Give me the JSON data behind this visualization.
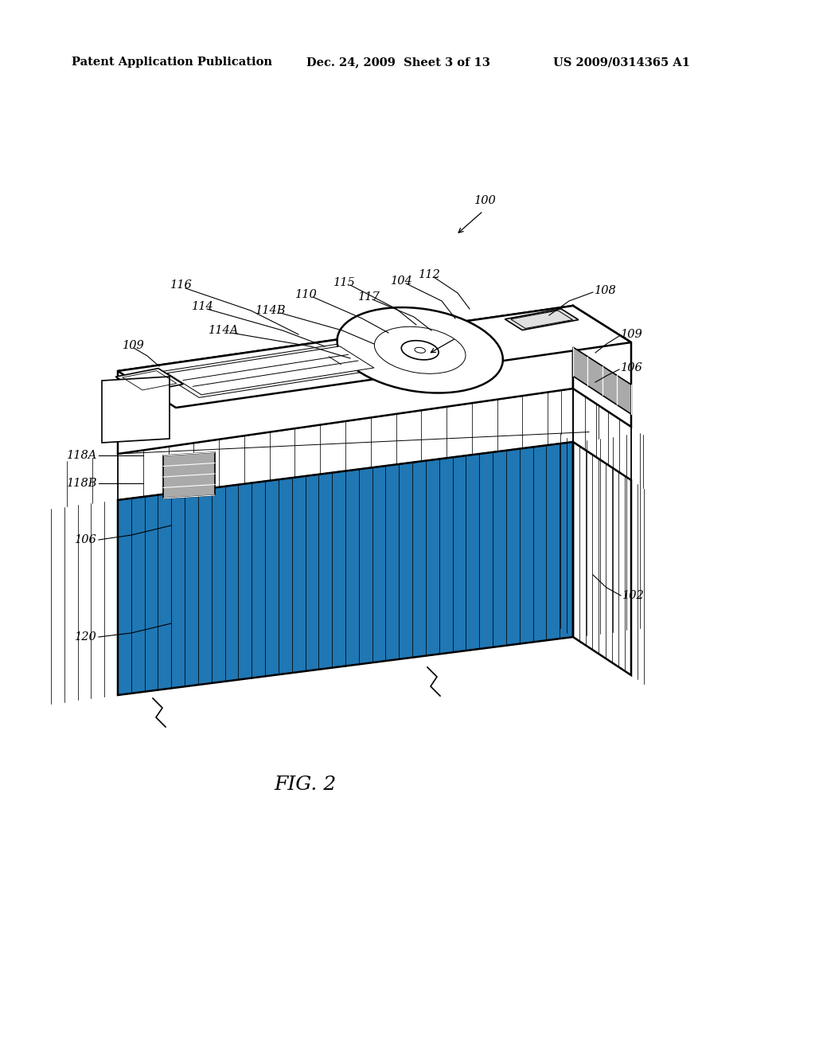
{
  "background_color": "#ffffff",
  "header_left": "Patent Application Publication",
  "header_mid": "Dec. 24, 2009  Sheet 3 of 13",
  "header_right": "US 2009/0314365 A1",
  "figure_label": "FIG. 2",
  "ref_100": "100",
  "ref_102": "102",
  "ref_104": "104",
  "ref_106": "106",
  "ref_108": "108",
  "ref_109": "109",
  "ref_110": "110",
  "ref_112": "112",
  "ref_114": "114",
  "ref_114A": "114A",
  "ref_114B": "114B",
  "ref_115": "115",
  "ref_116": "116",
  "ref_117": "117",
  "ref_118A": "118A",
  "ref_118B": "118B",
  "ref_120": "120",
  "line_color": "#000000",
  "hatch_color": "#000000",
  "face_color": "#ffffff",
  "gray_light": "#e0e0e0",
  "gray_mid": "#aaaaaa",
  "gray_dark": "#666666"
}
